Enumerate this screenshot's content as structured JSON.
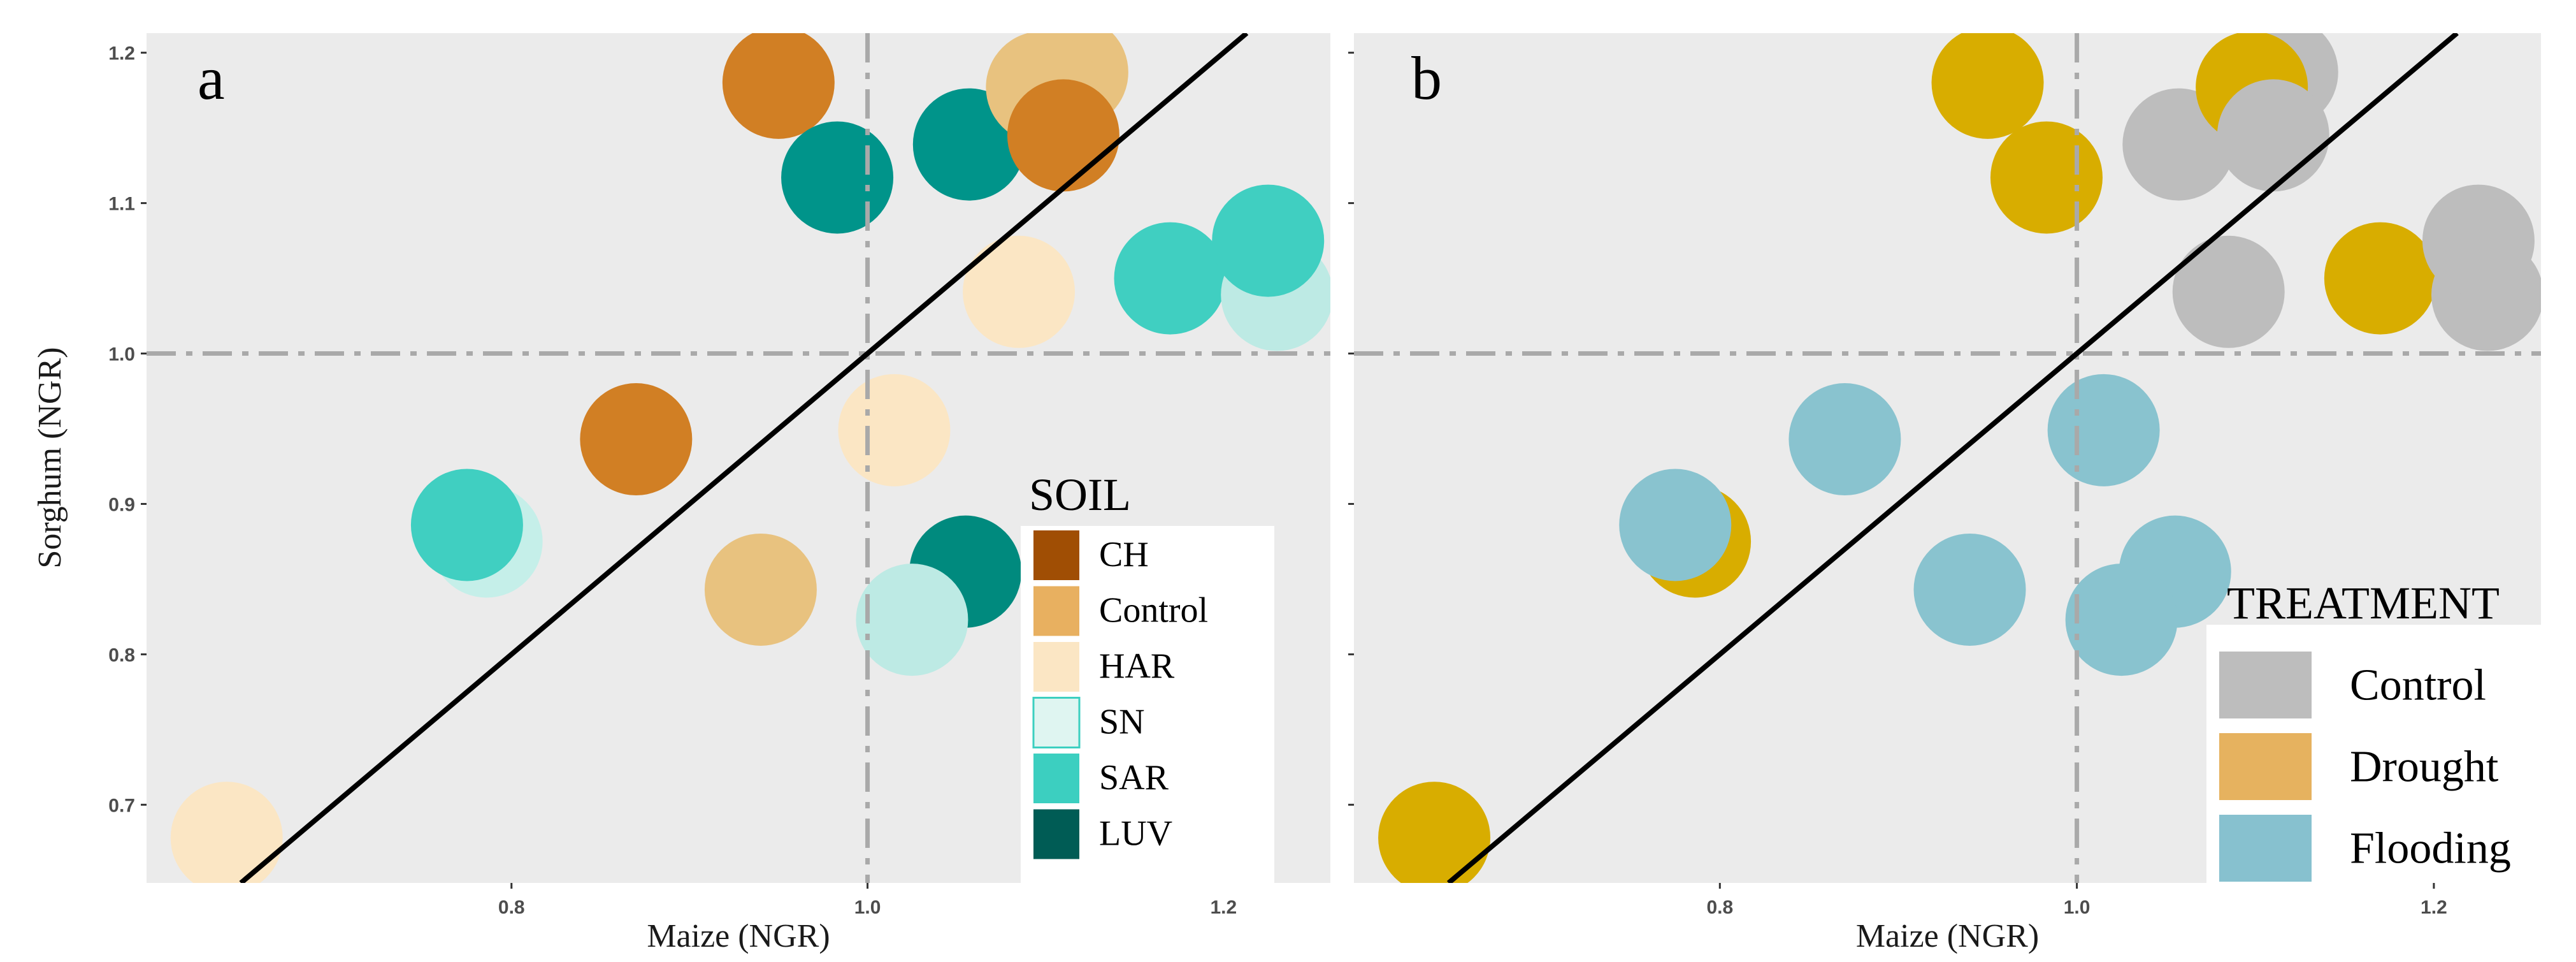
{
  "chart_data": [
    {
      "panel": "a",
      "type": "scatter",
      "xlabel": "Maize (NGR)",
      "ylabel": "Sorghum (NGR)",
      "xlim": [
        0.595,
        1.26
      ],
      "ylim": [
        0.648,
        1.213
      ],
      "xticks": [
        0.8,
        1.0,
        1.2
      ],
      "yticks": [
        0.7,
        0.8,
        0.9,
        1.0,
        1.1,
        1.2
      ],
      "xtick_labels": [
        "0.8",
        "1.0",
        "1.2"
      ],
      "ytick_labels": [
        "0.7",
        "0.8",
        "0.9",
        "1.0",
        "1.1",
        "1.2"
      ],
      "reference_lines": {
        "vertical_x": 1.0,
        "horizontal_y": 1.0,
        "diagonal": "y = x"
      },
      "legend": {
        "title": "SOIL",
        "position": "bottom-right",
        "entries": [
          {
            "label": "CH",
            "color": "#A04E04"
          },
          {
            "label": "Control",
            "color": "#E8B060"
          },
          {
            "label": "HAR",
            "color": "#FBE6C4"
          },
          {
            "label": "SN",
            "color": "#DFF5F1"
          },
          {
            "label": "SAR",
            "color": "#3CCFC0"
          },
          {
            "label": "LUV",
            "color": "#005C55"
          }
        ]
      },
      "points": [
        {
          "x": 0.64,
          "y": 0.678,
          "group": "HAR",
          "color": "#FBE6C4"
        },
        {
          "x": 0.786,
          "y": 0.875,
          "group": "SN",
          "color": "#C5EFE9"
        },
        {
          "x": 0.775,
          "y": 0.886,
          "group": "SAR",
          "color": "#40CFC1"
        },
        {
          "x": 0.87,
          "y": 0.943,
          "group": "CH",
          "color": "#D17F24"
        },
        {
          "x": 0.94,
          "y": 0.843,
          "group": "Control",
          "color": "#E8C27F"
        },
        {
          "x": 1.015,
          "y": 0.949,
          "group": "HAR",
          "color": "#FBE6C4"
        },
        {
          "x": 1.055,
          "y": 0.855,
          "group": "LUV",
          "color": "#008A7E"
        },
        {
          "x": 1.025,
          "y": 0.823,
          "group": "SN",
          "color": "#BDEAE4"
        },
        {
          "x": 0.95,
          "y": 1.18,
          "group": "CH",
          "color": "#D17F24"
        },
        {
          "x": 0.983,
          "y": 1.117,
          "group": "LUV",
          "color": "#00948A"
        },
        {
          "x": 1.057,
          "y": 1.139,
          "group": "LUV",
          "color": "#00948A"
        },
        {
          "x": 1.115,
          "y": 1.187,
          "group": "Control",
          "color": "#E8C27F"
        },
        {
          "x": 1.098,
          "y": 1.177,
          "group": "Control",
          "color": "#E8C27F"
        },
        {
          "x": 1.11,
          "y": 1.145,
          "group": "CH",
          "color": "#D17F24"
        },
        {
          "x": 1.085,
          "y": 1.041,
          "group": "HAR",
          "color": "#FBE6C4"
        },
        {
          "x": 1.17,
          "y": 1.05,
          "group": "SAR",
          "color": "#40CFC1"
        },
        {
          "x": 1.23,
          "y": 1.039,
          "group": "SN",
          "color": "#BDEAE4"
        },
        {
          "x": 1.225,
          "y": 1.075,
          "group": "SAR",
          "color": "#40CFC1"
        }
      ]
    },
    {
      "panel": "b",
      "type": "scatter",
      "xlabel": "Maize (NGR)",
      "ylabel": "",
      "xlim": [
        0.595,
        1.26
      ],
      "ylim": [
        0.648,
        1.213
      ],
      "xticks": [
        0.8,
        1.0,
        1.2
      ],
      "yticks": [
        0.7,
        0.8,
        0.9,
        1.0,
        1.1,
        1.2
      ],
      "xtick_labels": [
        "0.8",
        "1.0",
        "1.2"
      ],
      "reference_lines": {
        "vertical_x": 1.0,
        "horizontal_y": 1.0,
        "diagonal": "y = x"
      },
      "legend": {
        "title": "TREATMENT",
        "position": "bottom-right",
        "entries": [
          {
            "label": "Control",
            "color": "#BDBDBD"
          },
          {
            "label": "Drought",
            "color": "#E6B25F"
          },
          {
            "label": "Flooding",
            "color": "#87C1CF"
          }
        ]
      },
      "points": [
        {
          "x": 0.64,
          "y": 0.678,
          "group": "Drought",
          "color": "#D8AD00"
        },
        {
          "x": 0.786,
          "y": 0.875,
          "group": "Drought",
          "color": "#D8AD00"
        },
        {
          "x": 0.775,
          "y": 0.886,
          "group": "Flooding",
          "color": "#89C3CF"
        },
        {
          "x": 0.87,
          "y": 0.943,
          "group": "Flooding",
          "color": "#89C3CF"
        },
        {
          "x": 0.94,
          "y": 0.843,
          "group": "Flooding",
          "color": "#89C3CF"
        },
        {
          "x": 1.015,
          "y": 0.949,
          "group": "Flooding",
          "color": "#89C3CF"
        },
        {
          "x": 1.055,
          "y": 0.855,
          "group": "Flooding",
          "color": "#89C3CF"
        },
        {
          "x": 1.025,
          "y": 0.823,
          "group": "Flooding",
          "color": "#89C3CF"
        },
        {
          "x": 0.95,
          "y": 1.18,
          "group": "Drought",
          "color": "#D8AD00"
        },
        {
          "x": 0.983,
          "y": 1.117,
          "group": "Drought",
          "color": "#D8AD00"
        },
        {
          "x": 1.057,
          "y": 1.139,
          "group": "Control",
          "color": "#BDBDBD"
        },
        {
          "x": 1.115,
          "y": 1.187,
          "group": "Control",
          "color": "#BDBDBD"
        },
        {
          "x": 1.098,
          "y": 1.177,
          "group": "Drought",
          "color": "#D8AD00"
        },
        {
          "x": 1.11,
          "y": 1.145,
          "group": "Control",
          "color": "#BDBDBD"
        },
        {
          "x": 1.085,
          "y": 1.041,
          "group": "Control",
          "color": "#BDBDBD"
        },
        {
          "x": 1.17,
          "y": 1.05,
          "group": "Drought",
          "color": "#D8AD00"
        },
        {
          "x": 1.23,
          "y": 1.039,
          "group": "Control",
          "color": "#BDBDBD"
        },
        {
          "x": 1.225,
          "y": 1.075,
          "group": "Control",
          "color": "#BDBDBD"
        }
      ]
    }
  ]
}
